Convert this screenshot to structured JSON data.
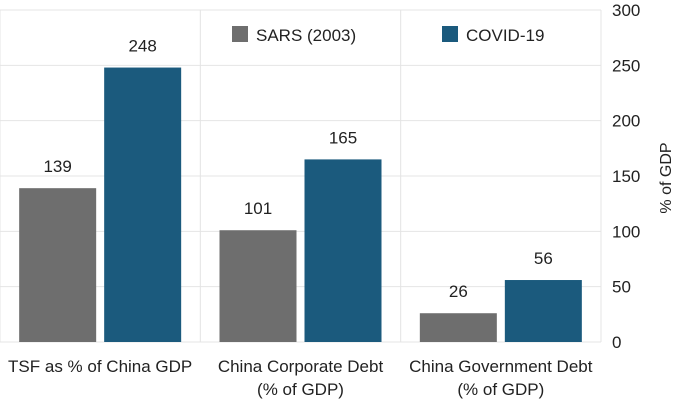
{
  "chart_data": {
    "type": "bar",
    "categories": [
      [
        "TSF as % of China GDP"
      ],
      [
        "China Corporate Debt",
        "(% of GDP)"
      ],
      [
        "China Government Debt",
        "(% of GDP)"
      ]
    ],
    "series": [
      {
        "name": "SARS (2003)",
        "color": "#6e6e6e",
        "values": [
          139,
          101,
          26
        ]
      },
      {
        "name": "COVID-19",
        "color": "#1b5a7d",
        "values": [
          248,
          165,
          56
        ]
      }
    ],
    "ylabel": "% of GDP",
    "ylim": [
      0,
      300
    ],
    "yticks": [
      0,
      50,
      100,
      150,
      200,
      250,
      300
    ],
    "y_axis_position": "right",
    "grid": true,
    "legend_position": "top"
  }
}
